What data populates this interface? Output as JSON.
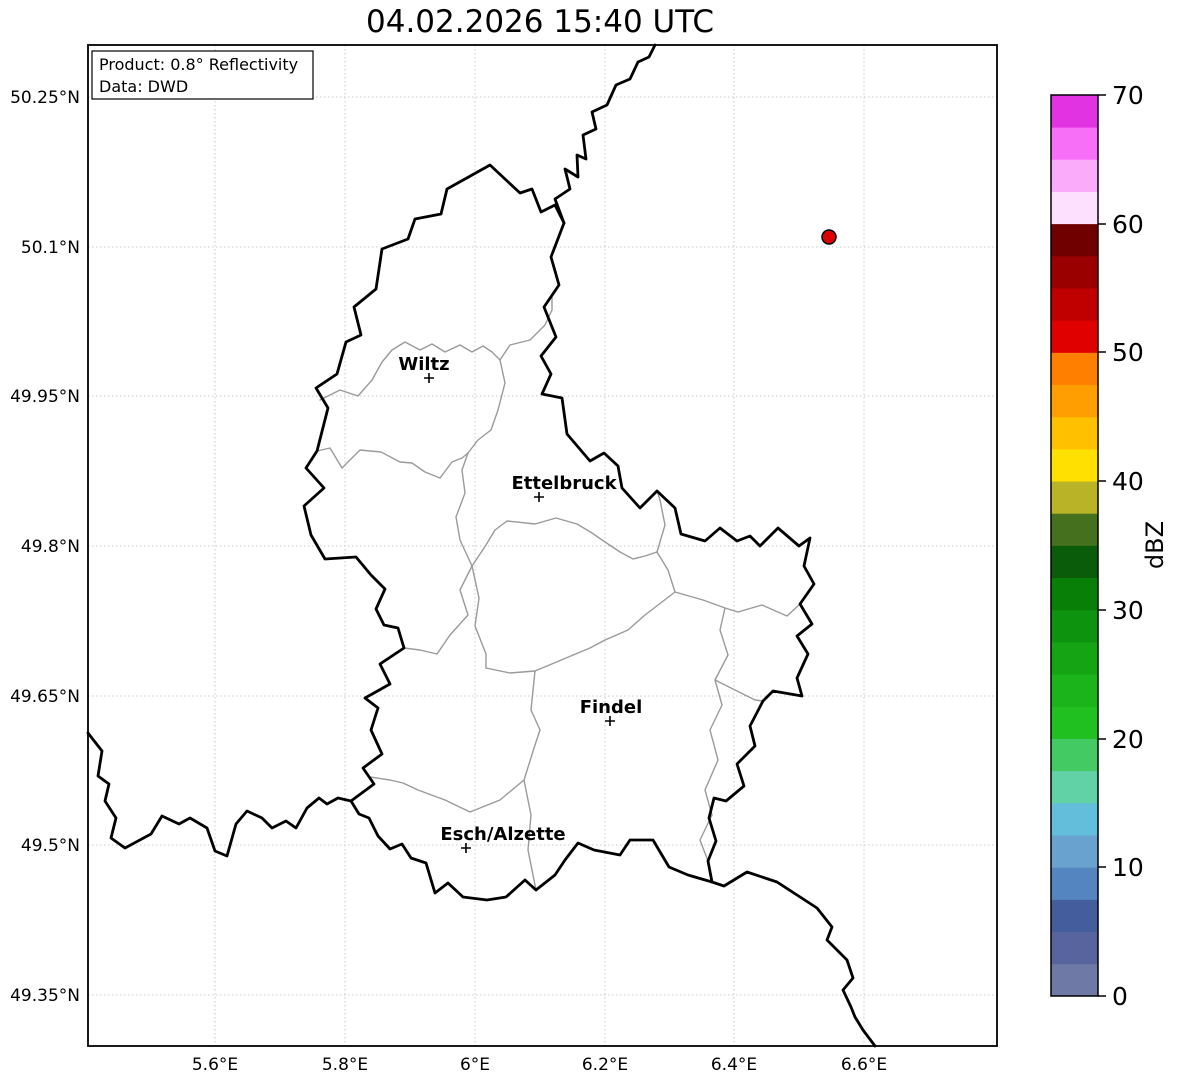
{
  "title": "04.02.2026 15:40 UTC",
  "info_box": {
    "line1": "Product: 0.8° Reflectivity",
    "line2": "Data: DWD"
  },
  "axes": {
    "x_ticks": [
      "5.6°E",
      "5.8°E",
      "6°E",
      "6.2°E",
      "6.4°E",
      "6.6°E"
    ],
    "y_ticks": [
      "50.25°N",
      "50.1°N",
      "49.95°N",
      "49.8°N",
      "49.65°N",
      "49.5°N",
      "49.35°N"
    ]
  },
  "cities": [
    {
      "name": "Wiltz"
    },
    {
      "name": "Ettelbruck"
    },
    {
      "name": "Findel"
    },
    {
      "name": "Esch/Alzette"
    }
  ],
  "colorbar": {
    "label": "dBZ",
    "ticks": [
      "0",
      "10",
      "20",
      "30",
      "40",
      "50",
      "60",
      "70"
    ],
    "min": 0,
    "max": 70,
    "step": 2.5,
    "colors": [
      "#6e7aa5",
      "#57649e",
      "#445e9d",
      "#5585c0",
      "#6aa2cf",
      "#62bedb",
      "#60d2a5",
      "#44ca63",
      "#21c021",
      "#1bb41b",
      "#14a414",
      "#0e930e",
      "#088008",
      "#0a5c0a",
      "#45701d",
      "#b9b327",
      "#ffe000",
      "#ffc000",
      "#ff9e00",
      "#ff7f00",
      "#e00000",
      "#c00000",
      "#9b0000",
      "#700000",
      "#fde0fd",
      "#faabfa",
      "#f66ff6",
      "#e233e2"
    ]
  },
  "chart_data": {
    "type": "scatter",
    "title": "04.02.2026 15:40 UTC",
    "xlim": [
      5.4,
      6.81
    ],
    "ylim": [
      49.3,
      50.3
    ],
    "x_tick_values": [
      5.6,
      5.8,
      6.0,
      6.2,
      6.4,
      6.6
    ],
    "y_tick_values": [
      50.25,
      50.1,
      49.95,
      49.8,
      49.65,
      49.5,
      49.35
    ],
    "grid": true,
    "legend_position": "none",
    "points": [
      {
        "x": 6.55,
        "y": 50.11,
        "dbz_estimate": 51
      }
    ],
    "point_color": "#dd0000",
    "map_labels": [
      "Wiltz",
      "Ettelbruck",
      "Findel",
      "Esch/Alzette"
    ],
    "colorbar_range": [
      0,
      70
    ]
  }
}
